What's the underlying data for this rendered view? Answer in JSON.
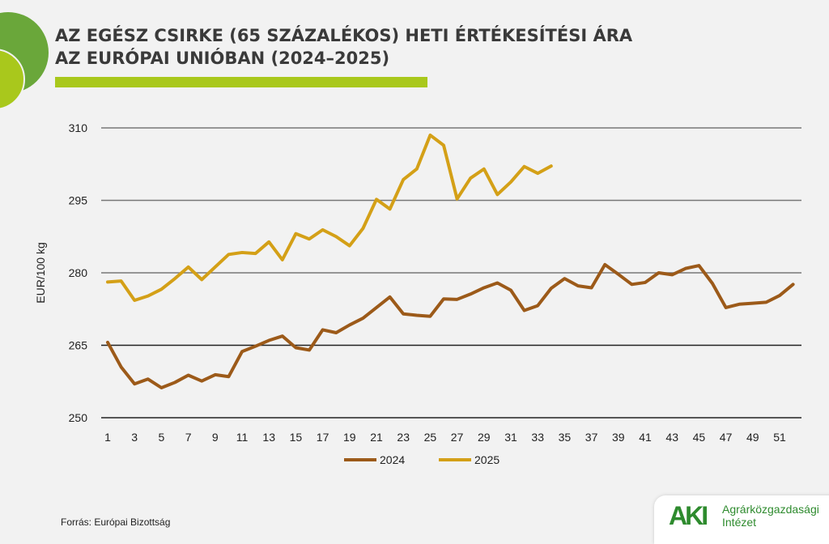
{
  "header": {
    "title_line1": "AZ EGÉSZ CSIRKE (65 SZÁZALÉKOS) HETI ÉRTÉKESÍTÉSI ÁRA",
    "title_line2": "AZ EURÓPAI UNIÓBAN (2024–2025)"
  },
  "footer": {
    "source": "Forrás: Európai Bizottság",
    "logo_text": "AKI",
    "org_line1": "Agrárközgazdasági",
    "org_line2": "Intézet"
  },
  "colors": {
    "2024": "#9c5a19",
    "2025": "#d4a017",
    "accent": "#a9c81c"
  },
  "chart_data": {
    "type": "line",
    "title": "AZ EGÉSZ CSIRKE (65 SZÁZALÉKOS) HETI ÉRTÉKESÍTÉSI ÁRA AZ EURÓPAI UNIÓBAN (2024–2025)",
    "xlabel": "",
    "ylabel": "EUR/100 kg",
    "ylim": [
      250,
      310
    ],
    "yticks": [
      250,
      265,
      280,
      295,
      310
    ],
    "xlim": [
      1,
      52
    ],
    "xticks": [
      1,
      3,
      5,
      7,
      9,
      11,
      13,
      15,
      17,
      19,
      21,
      23,
      25,
      27,
      29,
      31,
      33,
      35,
      37,
      39,
      41,
      43,
      45,
      47,
      49,
      51
    ],
    "grid": "horizontal",
    "legend": "bottom",
    "series": [
      {
        "name": "2024",
        "color": "#9c5a19",
        "x_start": 1,
        "values": [
          265.6,
          260.5,
          257,
          258,
          256.2,
          257.3,
          258.8,
          257.6,
          258.9,
          258.5,
          263.7,
          264.8,
          266,
          266.9,
          264.5,
          264,
          268.2,
          267.6,
          269.2,
          270.6,
          272.8,
          275,
          271.5,
          271.2,
          271,
          274.6,
          274.5,
          275.6,
          276.9,
          277.9,
          276.4,
          272.2,
          273.2,
          276.8,
          278.8,
          277.3,
          276.9,
          281.7,
          279.7,
          277.6,
          278,
          280,
          279.6,
          280.9,
          281.5,
          277.8,
          272.8,
          273.5,
          273.7,
          273.9,
          275.3,
          277.6
        ]
      },
      {
        "name": "2025",
        "color": "#d4a017",
        "x_start": 1,
        "values": [
          278.1,
          278.3,
          274.3,
          275.2,
          276.6,
          278.8,
          281.2,
          278.6,
          281.2,
          283.8,
          284.2,
          284,
          286.4,
          282.7,
          288.1,
          287,
          288.9,
          287.5,
          285.6,
          289.2,
          295.2,
          293.2,
          299.3,
          301.5,
          308.5,
          306.4,
          295.3,
          299.6,
          301.5,
          296.2,
          298.8,
          302,
          300.6,
          302.1
        ]
      }
    ]
  }
}
